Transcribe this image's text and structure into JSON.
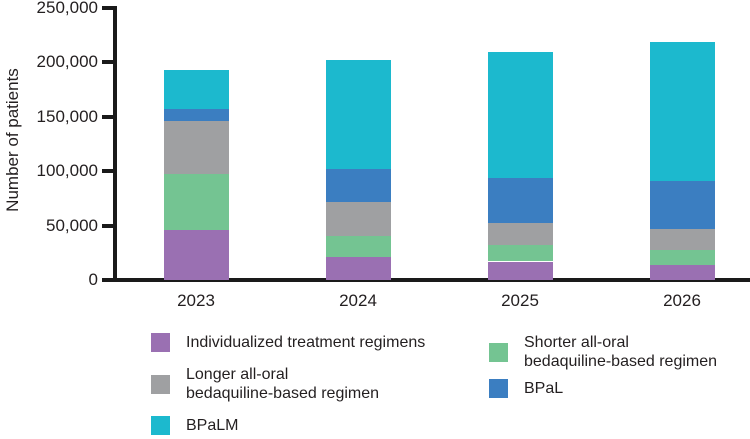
{
  "chart_data": {
    "type": "bar",
    "stacked": true,
    "title": "",
    "xlabel": "",
    "ylabel": "Number of patients",
    "categories": [
      "2023",
      "2024",
      "2025",
      "2026"
    ],
    "series": [
      {
        "name": "Individualized treatment regimens",
        "color": "#9a70b2",
        "values": [
          46000,
          21000,
          17000,
          14000
        ]
      },
      {
        "name": "Shorter all-oral bedaquiline-based regimen",
        "color": "#74c492",
        "values": [
          51000,
          19000,
          15000,
          14000
        ]
      },
      {
        "name": "Longer all-oral bedaquiline-based regimen",
        "color": "#9fa0a2",
        "values": [
          49000,
          32000,
          20000,
          19000
        ]
      },
      {
        "name": "BPaL",
        "color": "#3b7ec1",
        "values": [
          11000,
          30000,
          42000,
          44000
        ]
      },
      {
        "name": "BPaLM",
        "color": "#1cb9ce",
        "values": [
          36000,
          100000,
          116000,
          128000
        ]
      }
    ],
    "stack_order_bottom_to_top": [
      "Individualized treatment regimens",
      "Shorter all-oral bedaquiline-based regimen",
      "Longer all-oral bedaquiline-based regimen",
      "BPaL",
      "BPaLM"
    ],
    "totals": [
      193000,
      202000,
      210000,
      219000
    ],
    "ylim": [
      0,
      250000
    ],
    "ytick_values": [
      0,
      50000,
      100000,
      150000,
      200000,
      250000
    ],
    "ytick_labels": [
      "0",
      "50,000",
      "100,000",
      "150,000",
      "200,000",
      "250,000"
    ],
    "grid": false,
    "legend_position": "bottom"
  },
  "legend": {
    "left_column": [
      {
        "label": "Individualized treatment regimens",
        "color": "#9a70b2"
      },
      {
        "label": "Longer all-oral\nbedaquiline-based regimen",
        "color": "#9fa0a2"
      },
      {
        "label": "BPaLM",
        "color": "#1cb9ce"
      }
    ],
    "right_column": [
      {
        "label": "Shorter all-oral\nbedaquiline-based regimen",
        "color": "#74c492"
      },
      {
        "label": "BPaL",
        "color": "#3b7ec1"
      }
    ]
  },
  "colors": {
    "axis": "#1a1a1a",
    "text": "#231f20",
    "background": "#ffffff"
  }
}
